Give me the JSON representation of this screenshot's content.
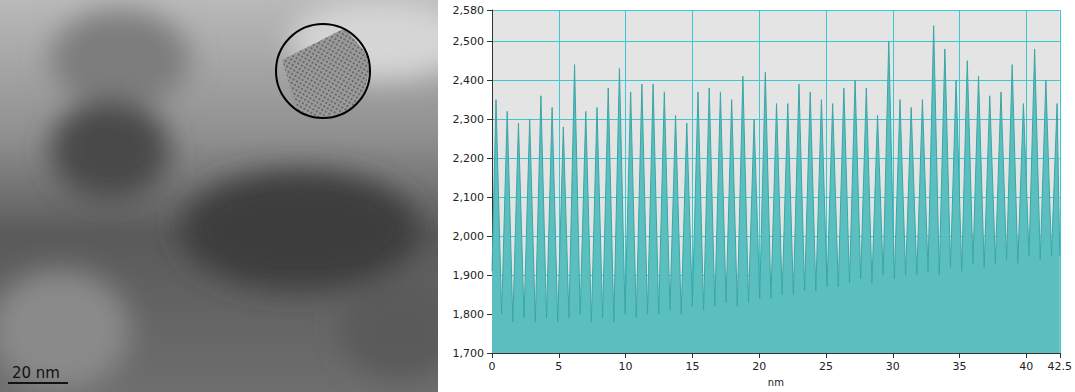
{
  "image": {
    "scale_bar": "20 nm"
  },
  "chart_data": {
    "type": "area",
    "x_label": "nm",
    "color": "#5bbfbf",
    "grid": true,
    "xlim": [
      0,
      42.5
    ],
    "xticks": [
      0,
      5,
      10,
      15,
      20,
      25,
      30,
      35,
      40
    ],
    "ylim": [
      1700,
      2580
    ],
    "yticks": [
      1700,
      1800,
      1900,
      2000,
      2100,
      2200,
      2300,
      2400,
      2500
    ],
    "x": [
      0,
      0.3,
      0.72,
      1.14,
      1.56,
      1.98,
      2.4,
      2.82,
      3.24,
      3.66,
      4.08,
      4.5,
      4.92,
      5.34,
      5.76,
      6.18,
      6.6,
      7.02,
      7.44,
      7.86,
      8.28,
      8.7,
      9.12,
      9.54,
      9.96,
      10.38,
      10.8,
      11.22,
      11.64,
      12.06,
      12.48,
      12.9,
      13.32,
      13.74,
      14.16,
      14.58,
      15,
      15.42,
      15.84,
      16.26,
      16.68,
      17.1,
      17.52,
      17.94,
      18.36,
      18.78,
      19.2,
      19.62,
      20.04,
      20.46,
      20.88,
      21.3,
      21.72,
      22.14,
      22.56,
      22.98,
      23.4,
      23.82,
      24.24,
      24.66,
      25.08,
      25.5,
      25.92,
      26.34,
      26.76,
      27.18,
      27.6,
      28.02,
      28.44,
      28.86,
      29.28,
      29.7,
      30.12,
      30.54,
      30.96,
      31.38,
      31.8,
      32.22,
      32.64,
      33.06,
      33.48,
      33.9,
      34.32,
      34.74,
      35.16,
      35.58,
      36,
      36.42,
      36.84,
      37.26,
      37.68,
      38.1,
      38.52,
      38.94,
      39.36,
      39.78,
      40.2,
      40.62,
      41.04,
      41.46,
      41.88,
      42.3,
      42.5
    ],
    "values": [
      1910,
      2350,
      1800,
      2320,
      1780,
      2290,
      1790,
      2300,
      1780,
      2360,
      1790,
      2330,
      1780,
      2280,
      1790,
      2440,
      1800,
      2320,
      1780,
      2330,
      1790,
      2380,
      1780,
      2430,
      1800,
      2370,
      1790,
      2390,
      1800,
      2390,
      1800,
      2370,
      1810,
      2310,
      1800,
      2290,
      1820,
      2370,
      1810,
      2380,
      1820,
      2370,
      1830,
      2350,
      1820,
      2410,
      1830,
      2300,
      1840,
      2420,
      1840,
      2340,
      1850,
      2340,
      1850,
      2390,
      1860,
      2370,
      1860,
      2350,
      1870,
      2340,
      1870,
      2380,
      1880,
      2400,
      1890,
      2380,
      1880,
      2310,
      1900,
      2500,
      1890,
      2350,
      1900,
      2330,
      1900,
      2350,
      1910,
      2540,
      1900,
      2480,
      1920,
      2400,
      1910,
      2450,
      1930,
      2410,
      1920,
      2360,
      1930,
      2370,
      1940,
      2440,
      1930,
      2340,
      1950,
      2480,
      1940,
      2400,
      1950,
      2340,
      1950
    ]
  }
}
